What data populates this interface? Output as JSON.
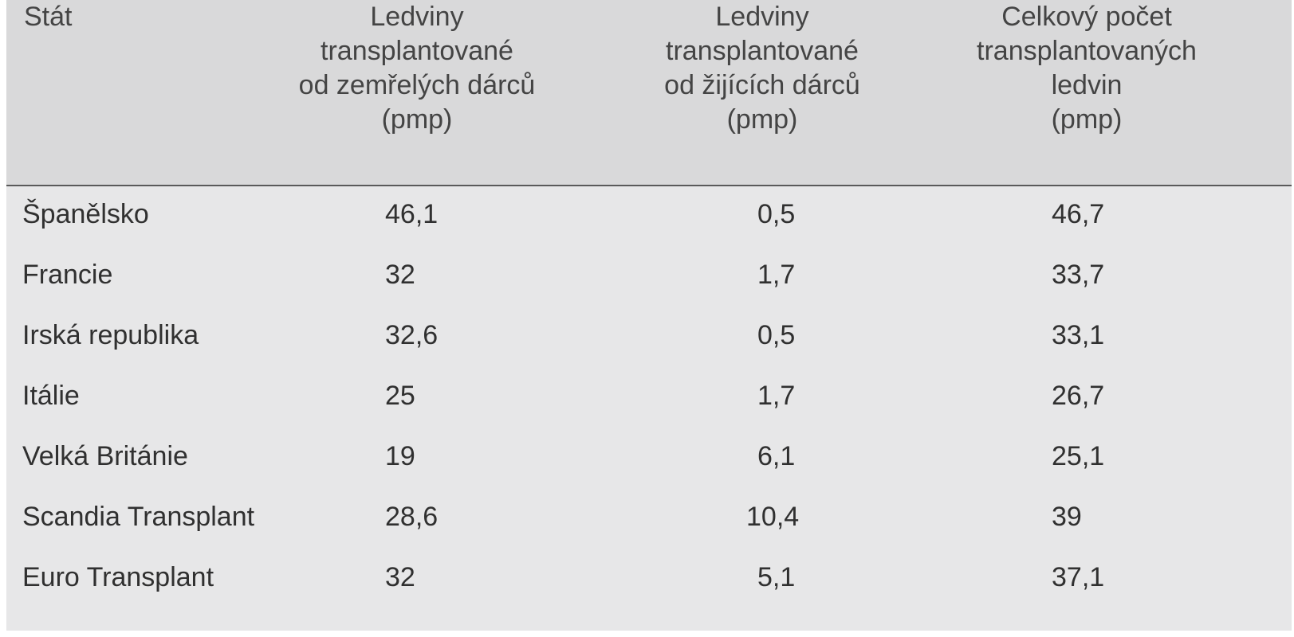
{
  "table": {
    "headers": {
      "country": [
        "Stát"
      ],
      "deceased": [
        "Ledviny",
        "transplantované",
        "od zemřelých dárců",
        "(pmp)"
      ],
      "living": [
        "Ledviny",
        "transplantované",
        "od žijících dárců",
        "(pmp)"
      ],
      "total": [
        "Celkový počet",
        "transplantovaných",
        "ledvin",
        "(pmp)"
      ]
    },
    "rows": [
      {
        "country": "Španělsko",
        "deceased": "46,1",
        "living": "0,5",
        "total": "46,7"
      },
      {
        "country": "Francie",
        "deceased": "32",
        "living": "1,7",
        "total": "33,7"
      },
      {
        "country": "Irská republika",
        "deceased": "32,6",
        "living": "0,5",
        "total": "33,1"
      },
      {
        "country": "Itálie",
        "deceased": "25",
        "living": "1,7",
        "total": "26,7"
      },
      {
        "country": "Velká Británie",
        "deceased": "19",
        "living": "6,1",
        "total": "25,1"
      },
      {
        "country": "Scandia Transplant",
        "deceased": "28,6",
        "living": "10,4",
        "total": "39"
      },
      {
        "country": "Euro Transplant",
        "deceased": "32",
        "living": "5,1",
        "total": "37,1"
      }
    ]
  }
}
